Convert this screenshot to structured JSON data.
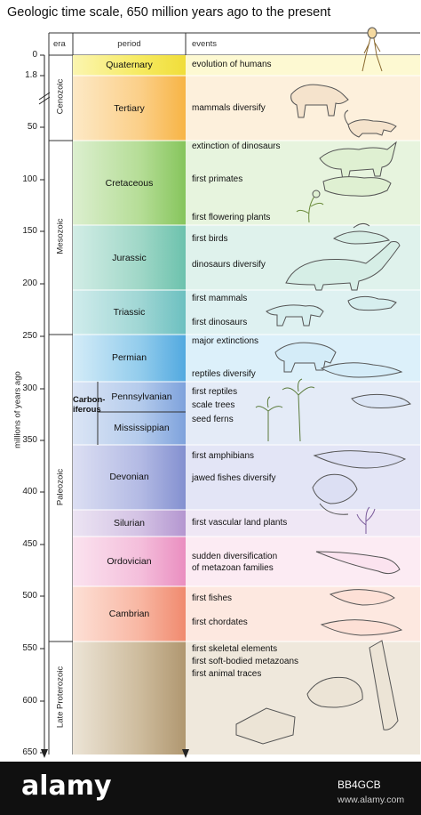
{
  "title": "Geologic time scale, 650 million years ago to the present",
  "headers": {
    "era": "era",
    "period": "period",
    "events": "events"
  },
  "y_axis": {
    "label": "millions of years ago",
    "ticks": [
      "0",
      "1.8",
      "50",
      "100",
      "150",
      "200",
      "250",
      "300",
      "350",
      "400",
      "450",
      "500",
      "550",
      "600",
      "650"
    ]
  },
  "eras": [
    "Cenozoic",
    "Mesozoic",
    "Paleozoic",
    "Late Proterozoic"
  ],
  "carboniferous_label": [
    "Carbon-",
    "iferous"
  ],
  "periods": [
    {
      "name": "Quaternary",
      "color": "#f7ee7e"
    },
    {
      "name": "Tertiary",
      "color": "#fbd89a"
    },
    {
      "name": "Cretaceous",
      "color": "#bfe3a8"
    },
    {
      "name": "Jurassic",
      "color": "#a7dbcf"
    },
    {
      "name": "Triassic",
      "color": "#a7dbd7"
    },
    {
      "name": "Permian",
      "color": "#9dd1ee"
    },
    {
      "name": "Pennsylvanian",
      "color": "#bcd2ee"
    },
    {
      "name": "Mississippian",
      "color": "#bcd2ee"
    },
    {
      "name": "Devonian",
      "color": "#b9bfe6"
    },
    {
      "name": "Silurian",
      "color": "#d8c8e6"
    },
    {
      "name": "Ordovician",
      "color": "#f6c8e0"
    },
    {
      "name": "Cambrian",
      "color": "#f9beae"
    },
    {
      "name": "",
      "color": "#d6c8b0"
    }
  ],
  "events": [
    "evolution of humans",
    "mammals diversify",
    "extinction of dinosaurs",
    "first primates",
    "first flowering plants",
    "first birds",
    "dinosaurs diversify",
    "first mammals",
    "first dinosaurs",
    "major extinctions",
    "reptiles diversify",
    "first reptiles",
    "scale trees",
    "seed ferns",
    "first amphibians",
    "jawed fishes diversify",
    "first vascular land plants",
    "sudden diversification",
    "of metazoan families",
    "first fishes",
    "first chordates",
    "first skeletal elements",
    "first soft-bodied metazoans",
    "first animal traces"
  ],
  "watermark": {
    "brand": "alamy",
    "image_id": "BB4GCB",
    "url": "www.alamy.com"
  }
}
